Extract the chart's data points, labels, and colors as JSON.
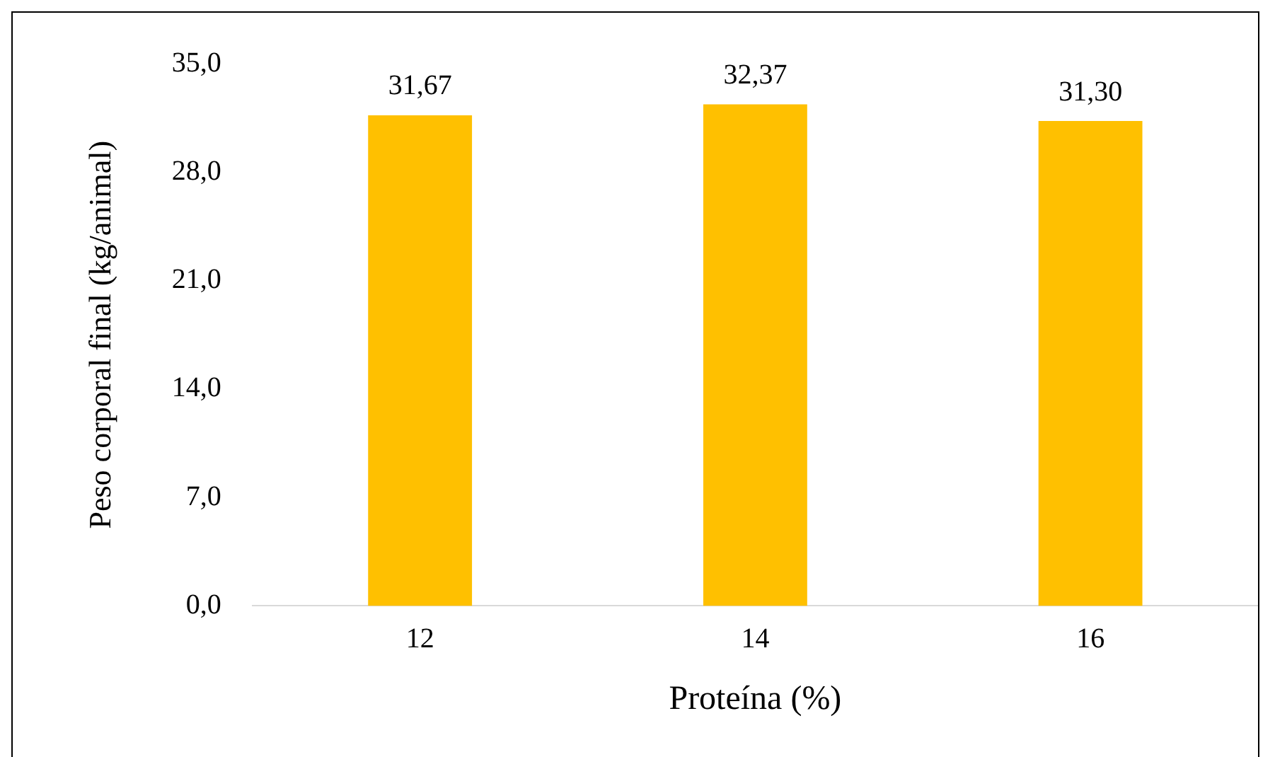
{
  "chart_data": {
    "type": "bar",
    "xlabel": "Proteína (%)",
    "ylabel": "Peso corporal final (kg/animal)",
    "categories": [
      "12",
      "14",
      "16"
    ],
    "values": [
      31.67,
      32.37,
      31.3
    ],
    "value_labels": [
      "31,67",
      "32,37",
      "31,30"
    ],
    "color": "#ffc000",
    "ylim": [
      0,
      35
    ],
    "yticks": [
      {
        "value": 0,
        "label": "0,0"
      },
      {
        "value": 7,
        "label": "7,0"
      },
      {
        "value": 14,
        "label": "14,0"
      },
      {
        "value": 21,
        "label": "21,0"
      },
      {
        "value": 28,
        "label": "28,0"
      },
      {
        "value": 35,
        "label": "35,0"
      }
    ],
    "grid": false,
    "legend": false
  }
}
